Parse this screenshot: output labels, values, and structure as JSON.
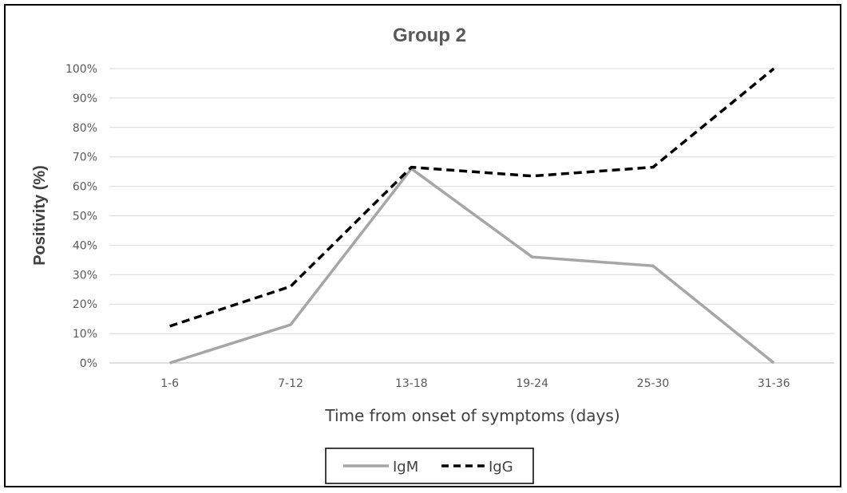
{
  "chart_data": {
    "type": "line",
    "title": "Group 2",
    "xlabel": "Time from onset of symptoms (days)",
    "ylabel": "Positivity (%)",
    "categories": [
      "1-6",
      "7-12",
      "13-18",
      "19-24",
      "25-30",
      "31-36"
    ],
    "y_ticks": [
      "0%",
      "10%",
      "20%",
      "30%",
      "40%",
      "50%",
      "60%",
      "70%",
      "80%",
      "90%",
      "100%"
    ],
    "ylim": [
      0,
      100
    ],
    "grid": "horizontal",
    "legend_position": "bottom",
    "series": [
      {
        "name": "IgM",
        "values": [
          0,
          13,
          66,
          36,
          33,
          0
        ],
        "color": "#a6a6a6",
        "style": "solid"
      },
      {
        "name": "IgG",
        "values": [
          12.5,
          26,
          66.5,
          63.5,
          66.5,
          100
        ],
        "color": "#000000",
        "style": "dashed"
      }
    ]
  }
}
